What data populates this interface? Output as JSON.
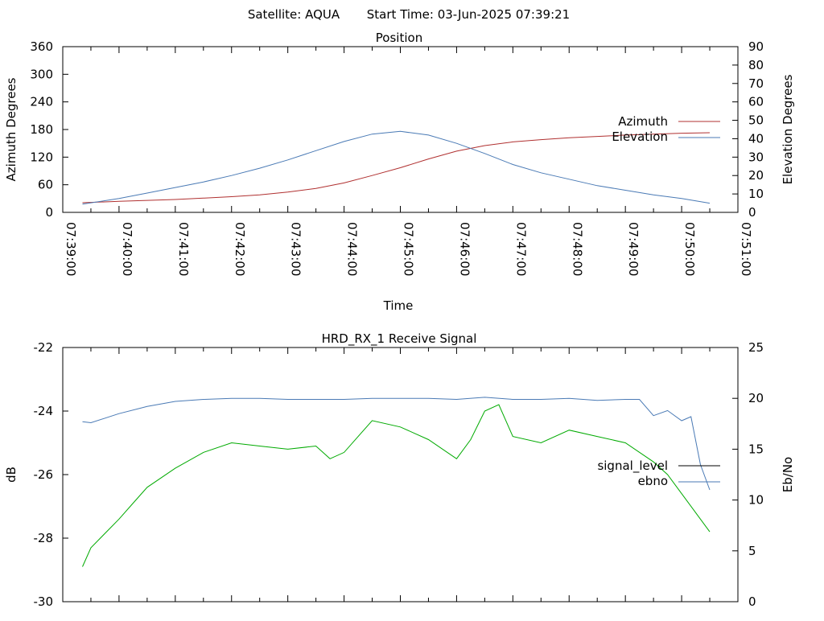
{
  "header": {
    "satellite": "Satellite: AQUA",
    "start_time": "Start Time: 03-Jun-2025 07:39:21"
  },
  "chart_data": [
    {
      "type": "line",
      "title": "Position",
      "xlabel": "Time",
      "ylabel": "Azimuth Degrees",
      "y2label": "Elevation Degrees",
      "x_ticks": [
        "07:39:00",
        "07:40:00",
        "07:41:00",
        "07:42:00",
        "07:43:00",
        "07:44:00",
        "07:45:00",
        "07:46:00",
        "07:47:00",
        "07:48:00",
        "07:49:00",
        "07:50:00",
        "07:51:00"
      ],
      "xlim": [
        "07:39:00",
        "07:51:00"
      ],
      "ylim": [
        0,
        360
      ],
      "y_ticks": [
        "0",
        "60",
        "120",
        "180",
        "240",
        "300",
        "360"
      ],
      "y2lim": [
        0,
        90
      ],
      "y2_ticks": [
        "0",
        "10",
        "20",
        "30",
        "40",
        "50",
        "60",
        "70",
        "80",
        "90"
      ],
      "legend_position": "right",
      "series": [
        {
          "name": "Azimuth",
          "axis": "y",
          "color": "#b03030",
          "x": [
            "07:39:21",
            "07:40:00",
            "07:40:30",
            "07:41:00",
            "07:41:30",
            "07:42:00",
            "07:42:30",
            "07:43:00",
            "07:43:30",
            "07:44:00",
            "07:44:30",
            "07:45:00",
            "07:45:30",
            "07:46:00",
            "07:46:30",
            "07:47:00",
            "07:47:30",
            "07:48:00",
            "07:48:30",
            "07:49:00",
            "07:49:30",
            "07:50:00",
            "07:50:30"
          ],
          "values": [
            21,
            24,
            26,
            28,
            31,
            34,
            38,
            44,
            52,
            64,
            80,
            97,
            116,
            133,
            145,
            153,
            158,
            162,
            165,
            168,
            170,
            172,
            173
          ]
        },
        {
          "name": "Elevation",
          "axis": "y2",
          "color": "#4a7ab5",
          "x": [
            "07:39:21",
            "07:40:00",
            "07:40:30",
            "07:41:00",
            "07:41:30",
            "07:42:00",
            "07:42:30",
            "07:43:00",
            "07:43:30",
            "07:44:00",
            "07:44:30",
            "07:45:00",
            "07:45:30",
            "07:46:00",
            "07:46:30",
            "07:47:00",
            "07:47:30",
            "07:48:00",
            "07:48:30",
            "07:49:00",
            "07:49:30",
            "07:50:00",
            "07:50:30"
          ],
          "values": [
            4.5,
            7.5,
            10.5,
            13.5,
            16.5,
            20,
            24,
            28.5,
            33.5,
            38.5,
            42.5,
            44,
            42,
            37.5,
            32,
            26,
            21.5,
            18,
            14.5,
            12,
            9.5,
            7.5,
            5
          ]
        }
      ]
    },
    {
      "type": "line",
      "title": "HRD_RX_1 Receive Signal",
      "xlabel": "",
      "ylabel": "dB",
      "y2label": "Eb/No",
      "xlim": [
        "07:39:00",
        "07:51:00"
      ],
      "ylim": [
        -30,
        -22
      ],
      "y_ticks": [
        "-30",
        "-28",
        "-26",
        "-24",
        "-22"
      ],
      "y2lim": [
        0,
        25
      ],
      "y2_ticks": [
        "0",
        "5",
        "10",
        "15",
        "20",
        "25"
      ],
      "legend_position": "right",
      "series": [
        {
          "name": "signal_level",
          "axis": "y",
          "color": "#000000",
          "x": [],
          "values": []
        },
        {
          "name": "ebno",
          "axis": "y2",
          "color": "#4a7ab5",
          "x": [
            "07:39:21",
            "07:39:30",
            "07:40:00",
            "07:40:30",
            "07:41:00",
            "07:41:30",
            "07:42:00",
            "07:42:30",
            "07:43:00",
            "07:43:30",
            "07:44:00",
            "07:44:30",
            "07:45:00",
            "07:45:30",
            "07:46:00",
            "07:46:30",
            "07:47:00",
            "07:47:30",
            "07:48:00",
            "07:48:30",
            "07:49:00",
            "07:49:15",
            "07:49:30",
            "07:49:45",
            "07:50:00",
            "07:50:10",
            "07:50:20",
            "07:50:30"
          ],
          "values": [
            17.7,
            17.6,
            18.5,
            19.2,
            19.7,
            19.9,
            20.0,
            20.0,
            19.9,
            19.9,
            19.9,
            20.0,
            20.0,
            20.0,
            19.9,
            20.1,
            19.9,
            19.9,
            20.0,
            19.8,
            19.9,
            19.9,
            18.3,
            18.8,
            17.8,
            18.2,
            13.5,
            11.0
          ]
        },
        {
          "name": "eb/no (green)",
          "axis": "y",
          "color": "#00aa00",
          "x": [
            "07:39:21",
            "07:39:30",
            "07:40:00",
            "07:40:15",
            "07:40:30",
            "07:41:00",
            "07:41:30",
            "07:42:00",
            "07:42:30",
            "07:43:00",
            "07:43:30",
            "07:43:45",
            "07:44:00",
            "07:44:15",
            "07:44:30",
            "07:45:00",
            "07:45:30",
            "07:46:00",
            "07:46:15",
            "07:46:30",
            "07:46:45",
            "07:47:00",
            "07:47:30",
            "07:48:00",
            "07:48:30",
            "07:49:00",
            "07:49:30",
            "07:49:45",
            "07:50:00",
            "07:50:15",
            "07:50:30"
          ],
          "values": [
            -28.9,
            -28.3,
            -27.4,
            -26.9,
            -26.4,
            -25.8,
            -25.3,
            -25.0,
            -25.1,
            -25.2,
            -25.1,
            -25.5,
            -25.3,
            -24.8,
            -24.3,
            -24.5,
            -24.9,
            -25.5,
            -24.9,
            -24.0,
            -23.8,
            -24.8,
            -25.0,
            -24.6,
            -24.8,
            -25.0,
            -25.6,
            -26.0,
            -26.6,
            -27.2,
            -27.8
          ]
        }
      ]
    }
  ]
}
